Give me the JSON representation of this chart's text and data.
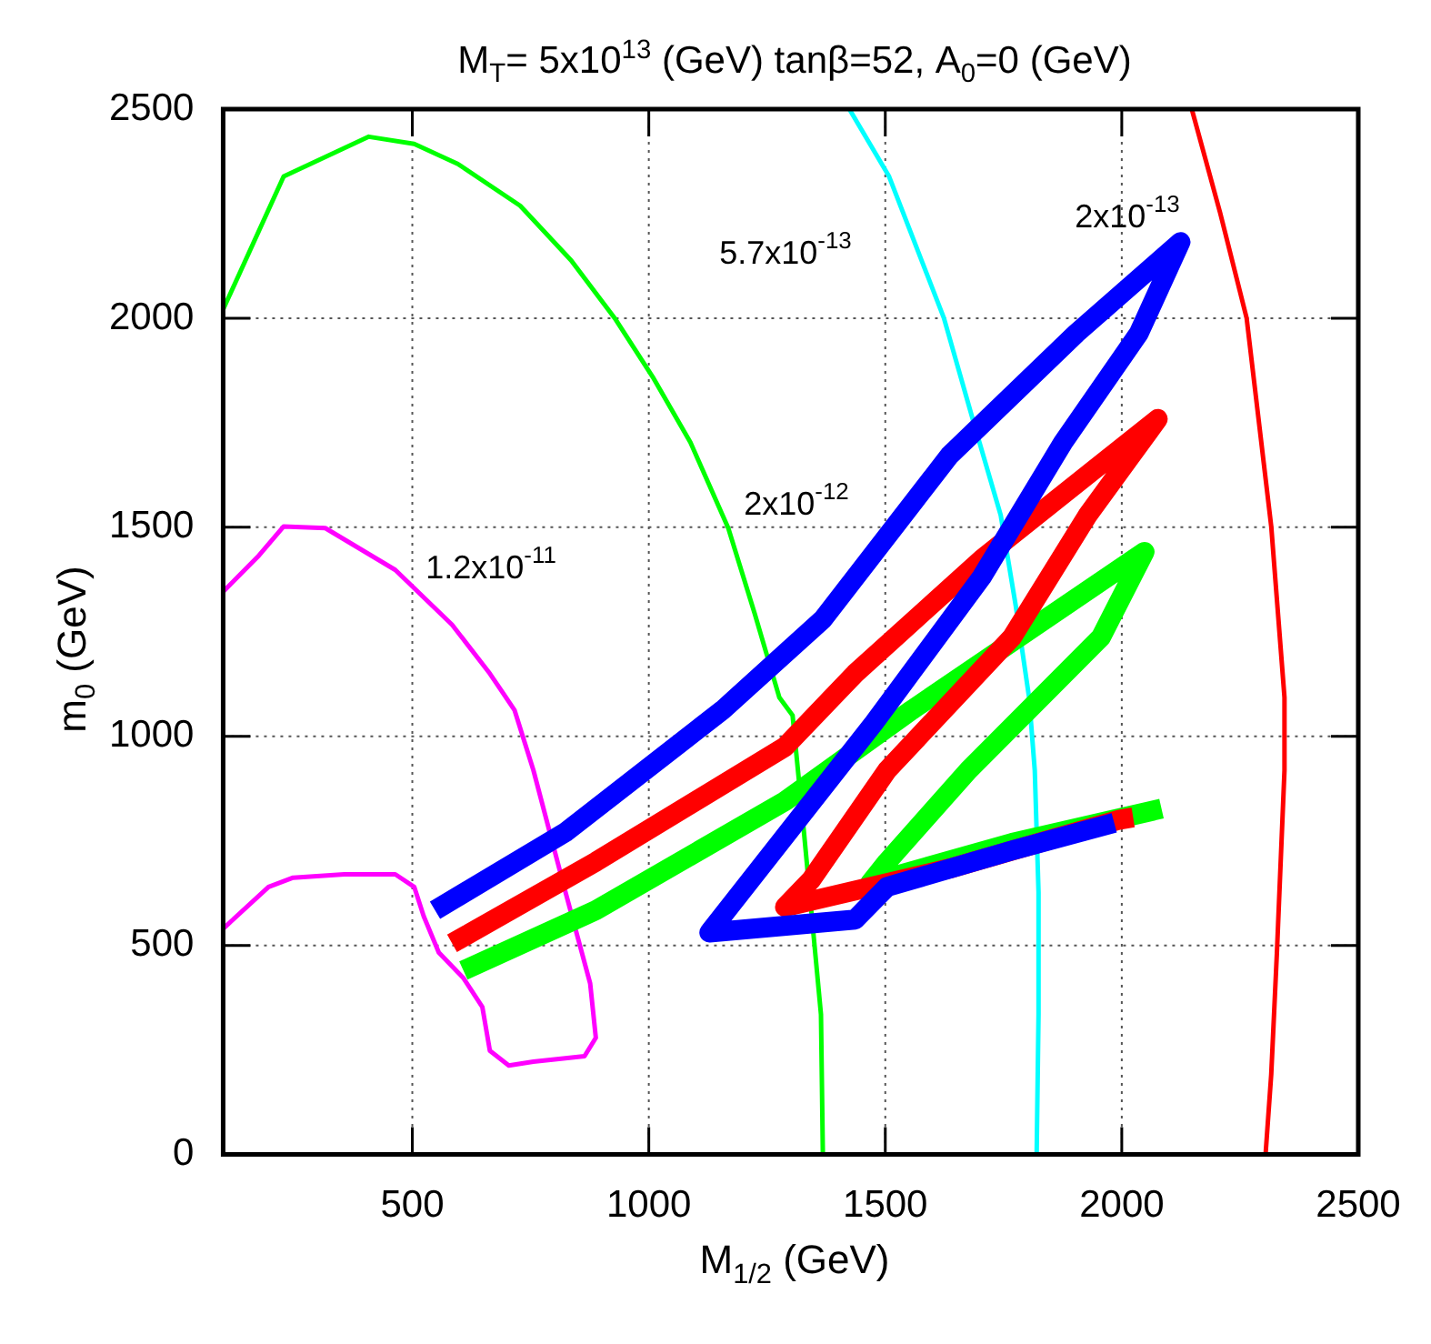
{
  "chart_data": {
    "type": "line",
    "title": "M$_{T}$= 5x10$^{13}$ (GeV) tanβ=52, A$_{0}$=0 (GeV)",
    "xlabel": "M$_{1/2}$ (GeV)",
    "ylabel": "m$_{0}$ (GeV)",
    "xlim": [
      100,
      2500
    ],
    "xticks": [
      500,
      1000,
      1500,
      2000,
      2500
    ],
    "ylim": [
      0,
      2500
    ],
    "yticks": [
      0,
      500,
      1000,
      1500,
      2000,
      2500
    ],
    "grid": true,
    "legend": false,
    "marker": "none",
    "line_style": "solid",
    "series": [
      {
        "name": "1.2x10$^{-11}$",
        "color": "#ff00ff",
        "x": [
          100,
          176,
          228,
          316,
          464,
          584,
          664,
          716,
          756,
          824,
          876,
          888,
          864,
          756,
          704,
          664,
          648,
          608,
          556,
          524,
          504,
          464,
          356,
          248,
          196,
          100
        ],
        "values": [
          1346,
          1433,
          1502,
          1498,
          1398,
          1267,
          1150,
          1063,
          919,
          627,
          409,
          279,
          235,
          222,
          213,
          248,
          353,
          422,
          483,
          570,
          640,
          670,
          670,
          662,
          640,
          540
        ]
      },
      {
        "name": "2x10$^{-12}$",
        "color": "#00ff00",
        "x": [
          100,
          228,
          408,
          504,
          596,
          728,
          836,
          928,
          1008,
          1088,
          1168,
          1224,
          1276,
          1304,
          1328,
          1364,
          1368
        ],
        "values": [
          2021,
          2339,
          2434,
          2417,
          2369,
          2269,
          2138,
          2000,
          1860,
          1703,
          1498,
          1293,
          1093,
          1050,
          771,
          335,
          0
        ]
      },
      {
        "name": "5.7x10$^{-13}$",
        "color": "#00ffff",
        "x": [
          1424,
          1508,
          1624,
          1688,
          1744,
          1776,
          1804,
          1816,
          1824,
          1824,
          1820
        ],
        "values": [
          2500,
          2339,
          2000,
          1746,
          1529,
          1311,
          1093,
          919,
          627,
          335,
          0
        ]
      },
      {
        "name": "2x10$^{-13}$",
        "color": "#ff0000",
        "x": [
          2148,
          2208,
          2264,
          2316,
          2344,
          2344,
          2328,
          2316,
          2304
        ],
        "values": [
          2500,
          2252,
          2000,
          1502,
          1093,
          919,
          483,
          192,
          0
        ]
      },
      {
        "color": "#00ff00",
        "x": [
          608,
          888,
          1288,
          1556,
          2048,
          1956,
          1676,
          1504,
          1468,
          1768,
          2084
        ],
        "values": [
          440,
          584,
          845,
          1063,
          1441,
          1237,
          919,
          700,
          649,
          745,
          827
        ]
      },
      {
        "color": "#ff0000",
        "x": [
          584,
          888,
          1288,
          1436,
          1704,
          2076,
          1928,
          1768,
          1504,
          1344,
          1288,
          1636,
          1996,
          2024
        ],
        "values": [
          505,
          700,
          975,
          1150,
          1424,
          1759,
          1529,
          1237,
          919,
          658,
          592,
          684,
          801,
          806
        ]
      },
      {
        "color": "#0000ff",
        "x": [
          548,
          824,
          1156,
          1368,
          1636,
          1904,
          2124,
          2036,
          1876,
          1704,
          1476,
          1128,
          1436,
          1504,
          1768,
          1984
        ],
        "values": [
          584,
          771,
          1063,
          1280,
          1672,
          1964,
          2182,
          1964,
          1703,
          1381,
          1032,
          531,
          562,
          640,
          727,
          793
        ]
      }
    ]
  }
}
